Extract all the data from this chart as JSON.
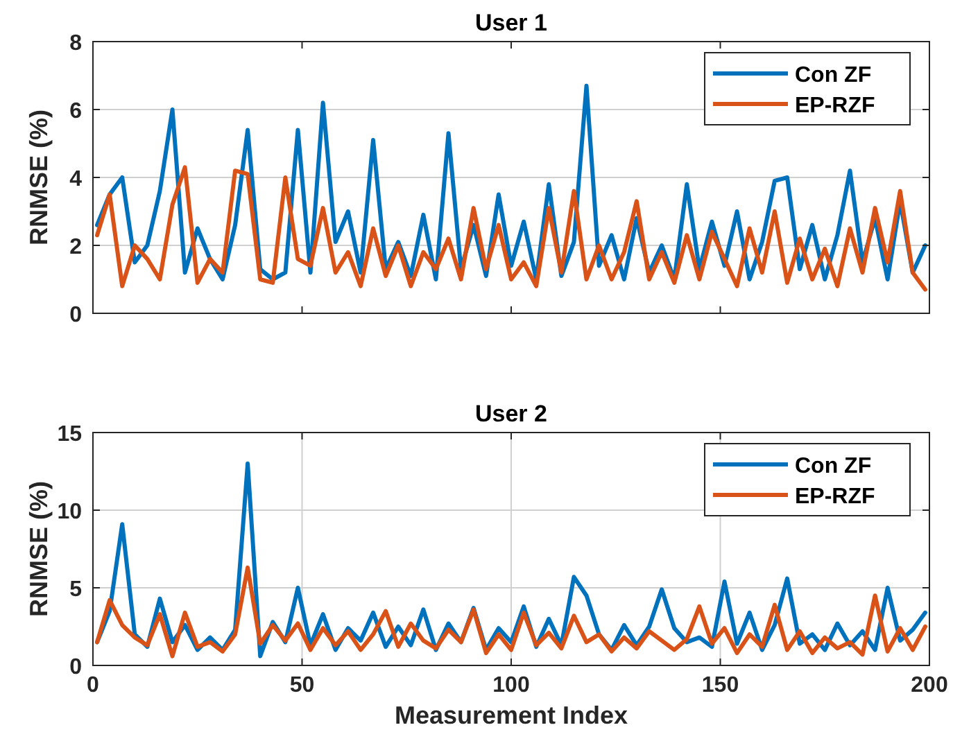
{
  "chart_data": [
    {
      "type": "line",
      "title": "User 1",
      "ylabel": "RNMSE (%)",
      "xlim": [
        0,
        200
      ],
      "xticks": [
        0,
        50,
        100,
        150,
        200
      ],
      "ylim": [
        0,
        8
      ],
      "yticks": [
        0,
        2,
        4,
        6,
        8
      ],
      "grid": "y",
      "legend": "top right",
      "tick_labels": "y",
      "line_style": "solid",
      "x": [
        1,
        4,
        7,
        10,
        13,
        16,
        19,
        22,
        25,
        28,
        31,
        34,
        37,
        40,
        43,
        46,
        49,
        52,
        55,
        58,
        61,
        64,
        67,
        70,
        73,
        76,
        79,
        82,
        85,
        88,
        91,
        94,
        97,
        100,
        103,
        106,
        109,
        112,
        115,
        118,
        121,
        124,
        127,
        130,
        133,
        136,
        139,
        142,
        145,
        148,
        151,
        154,
        157,
        160,
        163,
        166,
        169,
        172,
        175,
        178,
        181,
        184,
        187,
        190,
        193,
        196,
        199
      ],
      "series": [
        {
          "name": "Con ZF",
          "color": "#0072bd",
          "values": [
            2.6,
            3.5,
            4.0,
            1.5,
            2.0,
            3.6,
            6.0,
            1.2,
            2.5,
            1.6,
            1.0,
            2.6,
            5.4,
            1.3,
            1.0,
            1.2,
            5.4,
            1.2,
            6.2,
            2.1,
            3.0,
            1.2,
            5.1,
            1.3,
            2.1,
            1.1,
            2.9,
            1.0,
            5.3,
            1.3,
            2.6,
            1.1,
            3.5,
            1.4,
            2.7,
            1.0,
            3.8,
            1.1,
            2.1,
            6.7,
            1.4,
            2.3,
            1.0,
            2.8,
            1.2,
            2.0,
            1.0,
            3.8,
            1.3,
            2.7,
            1.4,
            3.0,
            1.0,
            2.1,
            3.9,
            4.0,
            1.3,
            2.6,
            1.0,
            2.3,
            4.2,
            1.5,
            2.8,
            1.0,
            3.3,
            1.2,
            2.0
          ]
        },
        {
          "name": "EP-RZF",
          "color": "#d95319",
          "values": [
            2.3,
            3.5,
            0.8,
            2.0,
            1.6,
            1.0,
            3.2,
            4.3,
            0.9,
            1.6,
            1.2,
            4.2,
            4.1,
            1.0,
            0.9,
            4.0,
            1.6,
            1.4,
            3.1,
            1.2,
            1.8,
            0.8,
            2.5,
            1.1,
            2.0,
            0.8,
            1.8,
            1.3,
            2.2,
            1.0,
            3.1,
            1.3,
            2.6,
            1.0,
            1.5,
            0.8,
            3.1,
            1.2,
            3.6,
            1.0,
            2.0,
            1.0,
            1.8,
            3.3,
            1.0,
            1.8,
            0.9,
            2.3,
            1.0,
            2.4,
            1.6,
            0.8,
            2.5,
            1.2,
            3.0,
            0.9,
            2.2,
            1.0,
            1.9,
            0.8,
            2.5,
            1.2,
            3.1,
            1.5,
            3.6,
            1.2,
            0.7
          ]
        }
      ]
    },
    {
      "type": "line",
      "title": "User 2",
      "xlabel": "Measurement Index",
      "ylabel": "RNMSE (%)",
      "xlim": [
        0,
        200
      ],
      "xticks": [
        0,
        50,
        100,
        150,
        200
      ],
      "ylim": [
        0,
        15
      ],
      "yticks": [
        0,
        5,
        10,
        15
      ],
      "grid": true,
      "legend": "top right",
      "line_style": "solid",
      "x": [
        1,
        4,
        7,
        10,
        13,
        16,
        19,
        22,
        25,
        28,
        31,
        34,
        37,
        40,
        43,
        46,
        49,
        52,
        55,
        58,
        61,
        64,
        67,
        70,
        73,
        76,
        79,
        82,
        85,
        88,
        91,
        94,
        97,
        100,
        103,
        106,
        109,
        112,
        115,
        118,
        121,
        124,
        127,
        130,
        133,
        136,
        139,
        142,
        145,
        148,
        151,
        154,
        157,
        160,
        163,
        166,
        169,
        172,
        175,
        178,
        181,
        184,
        187,
        190,
        193,
        196,
        199
      ],
      "series": [
        {
          "name": "Con ZF",
          "color": "#0072bd",
          "values": [
            1.5,
            3.5,
            9.1,
            2.0,
            1.2,
            4.3,
            1.5,
            2.6,
            1.0,
            1.8,
            1.0,
            2.3,
            13.0,
            0.6,
            2.8,
            1.5,
            5.0,
            1.3,
            3.3,
            1.0,
            2.4,
            1.6,
            3.4,
            1.2,
            2.5,
            1.3,
            3.6,
            1.0,
            2.7,
            1.5,
            3.7,
            1.0,
            2.4,
            1.5,
            3.8,
            1.2,
            3.0,
            1.3,
            5.7,
            4.5,
            2.0,
            1.0,
            2.6,
            1.3,
            2.5,
            4.9,
            2.4,
            1.5,
            1.8,
            1.2,
            5.4,
            1.4,
            3.4,
            1.0,
            2.6,
            5.6,
            1.4,
            2.0,
            1.0,
            2.7,
            1.3,
            2.2,
            1.0,
            5.0,
            1.6,
            2.3,
            3.4
          ]
        },
        {
          "name": "EP-RZF",
          "color": "#d95319",
          "values": [
            1.5,
            4.2,
            2.6,
            1.8,
            1.3,
            3.3,
            0.6,
            3.4,
            1.2,
            1.5,
            0.9,
            2.0,
            6.3,
            1.4,
            2.6,
            1.6,
            2.7,
            1.0,
            2.4,
            1.3,
            2.2,
            1.0,
            2.0,
            3.5,
            1.2,
            2.7,
            1.6,
            1.1,
            2.3,
            1.5,
            3.6,
            0.8,
            2.0,
            1.0,
            3.4,
            1.3,
            2.1,
            1.1,
            3.2,
            1.5,
            2.0,
            0.9,
            1.8,
            1.1,
            2.2,
            1.6,
            1.0,
            1.7,
            3.8,
            1.4,
            2.4,
            0.8,
            2.0,
            1.2,
            3.9,
            1.0,
            2.2,
            0.8,
            1.8,
            1.1,
            1.5,
            0.7,
            4.5,
            0.9,
            2.4,
            1.0,
            2.5
          ]
        }
      ]
    }
  ]
}
